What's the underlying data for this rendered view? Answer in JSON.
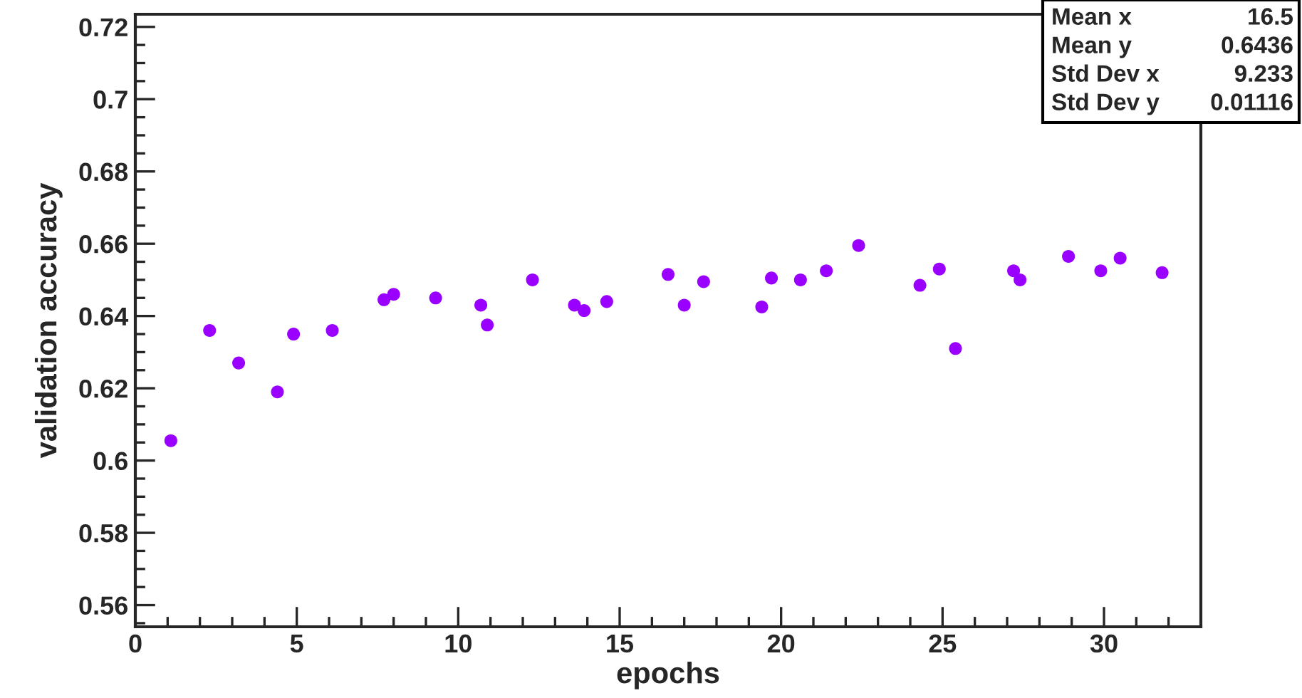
{
  "chart_data": {
    "type": "scatter",
    "xlabel": "epochs",
    "ylabel": "validation accuracy",
    "x": [
      1.1,
      2.3,
      3.2,
      4.4,
      4.9,
      6.1,
      7.7,
      8.0,
      9.3,
      10.7,
      10.9,
      12.3,
      13.6,
      13.9,
      14.6,
      16.5,
      17.0,
      17.6,
      19.4,
      19.7,
      20.6,
      21.4,
      22.4,
      24.3,
      24.9,
      25.4,
      27.2,
      27.4,
      28.9,
      29.9,
      30.5,
      31.8
    ],
    "series": [
      {
        "color": "#9900ff",
        "values": [
          0.6055,
          0.636,
          0.627,
          0.619,
          0.635,
          0.636,
          0.6445,
          0.646,
          0.645,
          0.643,
          0.6375,
          0.65,
          0.643,
          0.6415,
          0.644,
          0.6515,
          0.643,
          0.6495,
          0.6425,
          0.6505,
          0.65,
          0.6525,
          0.6595,
          0.6485,
          0.653,
          0.631,
          0.6525,
          0.65,
          0.6565,
          0.6525,
          0.656,
          0.652
        ]
      }
    ],
    "xlim": [
      0,
      33
    ],
    "ylim": [
      0.554,
      0.7235
    ],
    "xticks": [
      0,
      5,
      10,
      15,
      20,
      25,
      30
    ],
    "yticks": [
      0.56,
      0.58,
      0.6,
      0.62,
      0.64,
      0.66,
      0.68,
      0.7,
      0.72
    ],
    "marker": "circle",
    "grid": false,
    "legend": false,
    "annotations": [
      "Mean x",
      "16.5",
      "Mean y",
      "0.6436",
      "Std Dev x",
      "9.233",
      "Std Dev y",
      "0.01116"
    ]
  }
}
